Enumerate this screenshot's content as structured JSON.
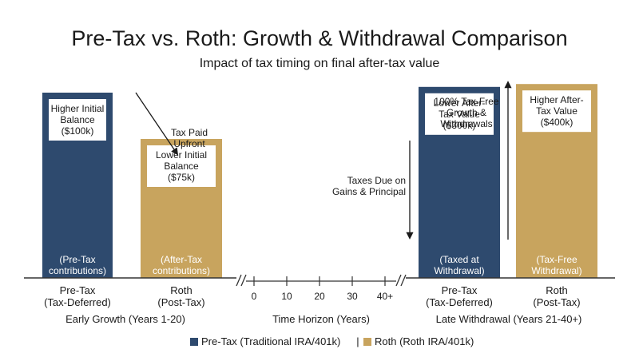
{
  "title": "Pre-Tax vs. Roth: Growth & Withdrawal Comparison",
  "subtitle": "Impact of tax timing on final after-tax value",
  "colors": {
    "pretax": "#2e4a6e",
    "roth": "#c8a45e",
    "baseline": "#333333"
  },
  "chart_data": {
    "type": "bar",
    "title": "Pre-Tax vs. Roth: Growth & Withdrawal Comparison",
    "subtitle": "Impact of tax timing on final after-tax value",
    "ylim": [
      0,
      400
    ],
    "unit": "$k",
    "groups": [
      {
        "name": "Early Growth (Years 1-20)",
        "bars": [
          {
            "series": "pretax",
            "value": 100,
            "label_lines": [
              "Pre-Tax",
              "(Tax-Deferred)"
            ],
            "callout_lines": [
              "Higher Initial",
              "Balance",
              "($100k)"
            ],
            "inner_lines": [
              "(Pre-Tax",
              "contributions)"
            ]
          },
          {
            "series": "roth",
            "value": 75,
            "label_lines": [
              "Roth",
              "(Post-Tax)"
            ],
            "callout_lines": [
              "Lower Initial",
              "Balance",
              "($75k)"
            ],
            "inner_lines": [
              "(After-Tax",
              "contributions)"
            ]
          }
        ]
      },
      {
        "name": "Late Withdrawal (Years 21-40+)",
        "bars": [
          {
            "series": "pretax",
            "value": 300,
            "label_lines": [
              "Pre-Tax",
              "(Tax-Deferred)"
            ],
            "callout_lines": [
              "Lower After-",
              "Tax Value",
              "($300k)"
            ],
            "inner_lines": [
              "(Taxed at",
              "Withdrawal)"
            ]
          },
          {
            "series": "roth",
            "value": 400,
            "label_lines": [
              "Roth",
              "(Post-Tax)"
            ],
            "callout_lines": [
              "Higher After-",
              "Tax Value",
              "($400k)"
            ],
            "inner_lines": [
              "(Tax-Free",
              "Withdrawal)"
            ]
          }
        ]
      }
    ],
    "time_axis": {
      "label": "Time Horizon (Years)",
      "ticks": [
        "0",
        "10",
        "20",
        "30",
        "40+"
      ]
    },
    "annotations": [
      {
        "name": "tax-paid-upfront",
        "lines": [
          "Tax Paid",
          "Upfront"
        ]
      },
      {
        "name": "taxes-due",
        "lines": [
          "Taxes Due on",
          "Gains & Principal"
        ]
      },
      {
        "name": "tax-free-growth",
        "lines": [
          "100% Tax-Free",
          "Growth &",
          "Withdrawals"
        ]
      }
    ],
    "legend": {
      "placement": "bottom-center",
      "items": [
        {
          "series": "pretax",
          "label": "Pre-Tax (Traditional IRA/401k)"
        },
        {
          "series": "roth",
          "label": "Roth (Roth IRA/401k)"
        }
      ],
      "separator": "|"
    }
  }
}
